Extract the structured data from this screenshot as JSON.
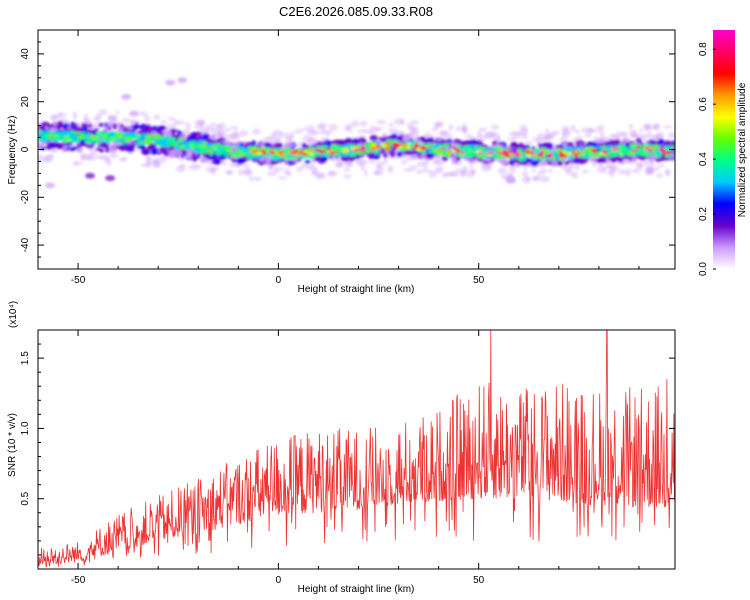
{
  "title": "C2E6.2026.085.09.33.R08",
  "chart_data": [
    {
      "type": "heatmap",
      "name": "spectrogram",
      "xlabel": "Height of straight line (km)",
      "ylabel": "Frequency (Hz)",
      "xlim": [
        -60,
        99
      ],
      "ylim": [
        -50,
        50
      ],
      "xticks": [
        -50,
        0,
        50
      ],
      "yticks": [
        -40,
        -20,
        0,
        20,
        40
      ],
      "xtick_labels": [
        "-50",
        "0",
        "50"
      ],
      "ytick_labels": [
        "-40",
        "-20",
        "0",
        "20",
        "40"
      ],
      "ridge": {
        "x": [
          -60,
          -50,
          -40,
          -30,
          -20,
          -10,
          0,
          10,
          20,
          30,
          40,
          50,
          60,
          70,
          80,
          90,
          99
        ],
        "freq": [
          6,
          5,
          5,
          4,
          1,
          -1,
          -2,
          -1,
          0,
          2,
          0,
          -1,
          -2,
          -2,
          -1,
          0,
          -1
        ]
      },
      "colorbar": {
        "label": "Normalized spectral amplitude",
        "ticks": [
          0.0,
          0.2,
          0.4,
          0.6,
          0.8
        ],
        "tick_labels": [
          "0.0",
          "0.2",
          "0.4",
          "0.6",
          "0.8"
        ],
        "range": [
          0,
          0.87
        ],
        "colors": [
          "#ffffff",
          "#cc99ff",
          "#6600cc",
          "#0000ff",
          "#00ccff",
          "#00ff88",
          "#66ff00",
          "#ffff00",
          "#ff9900",
          "#ff0000",
          "#ff0066",
          "#ff00cc"
        ]
      }
    },
    {
      "type": "line",
      "name": "snr",
      "xlabel": "Height of straight line (km)",
      "ylabel": "SNR (10 * v/v)",
      "scale_label": "(x10⁴)",
      "xlim": [
        -60,
        99
      ],
      "ylim": [
        0,
        1.7
      ],
      "xticks": [
        -50,
        0,
        50
      ],
      "yticks": [
        0.5,
        1.0,
        1.5
      ],
      "xtick_labels": [
        "-50",
        "0",
        "50"
      ],
      "ytick_labels": [
        "0.5",
        "1.0",
        "1.5"
      ],
      "color": "#ee3333",
      "envelope": {
        "x": [
          -60,
          -50,
          -40,
          -30,
          -20,
          -10,
          0,
          10,
          20,
          30,
          40,
          50,
          60,
          70,
          80,
          90,
          99
        ],
        "base": [
          0.02,
          0.05,
          0.12,
          0.2,
          0.25,
          0.32,
          0.38,
          0.4,
          0.42,
          0.46,
          0.48,
          0.5,
          0.5,
          0.48,
          0.45,
          0.44,
          0.42
        ],
        "peak": [
          0.15,
          0.2,
          0.4,
          0.52,
          0.65,
          0.8,
          0.95,
          1.0,
          1.0,
          1.05,
          1.15,
          1.35,
          1.3,
          1.35,
          1.3,
          1.3,
          1.35
        ]
      },
      "spikes": {
        "x": [
          53,
          82,
          97
        ],
        "y": [
          1.72,
          1.7,
          1.35
        ]
      }
    }
  ]
}
